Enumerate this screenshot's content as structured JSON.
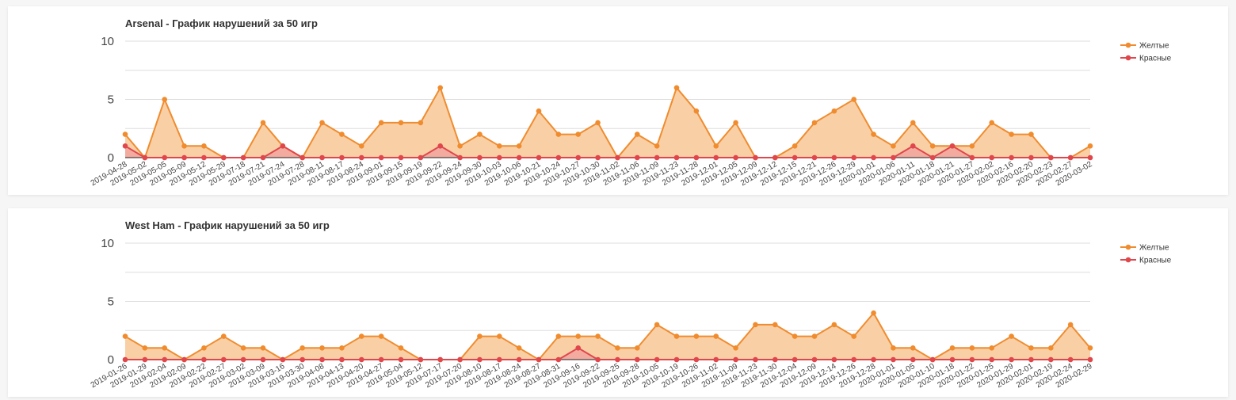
{
  "colors": {
    "yellow_line": "#f08c2e",
    "yellow_fill": "#f9cfa6",
    "red_line": "#e0474c",
    "red_fill": "#f2a6a0",
    "grid": "#dddddd",
    "baseline": "#222222"
  },
  "chart_data": [
    {
      "type": "area",
      "title": "Arsenal - График нарушений за 50 игр",
      "ylim": [
        0,
        10
      ],
      "yticks": [
        0,
        5,
        10
      ],
      "grid": true,
      "legend_position": "top-right",
      "categories": [
        "2019-04-28",
        "2019-05-02",
        "2019-05-05",
        "2019-05-09",
        "2019-05-12",
        "2019-05-29",
        "2019-07-18",
        "2019-07-21",
        "2019-07-24",
        "2019-07-28",
        "2019-08-11",
        "2019-08-17",
        "2019-08-24",
        "2019-09-01",
        "2019-09-15",
        "2019-09-19",
        "2019-09-22",
        "2019-09-24",
        "2019-09-30",
        "2019-10-03",
        "2019-10-06",
        "2019-10-21",
        "2019-10-24",
        "2019-10-27",
        "2019-10-30",
        "2019-11-02",
        "2019-11-06",
        "2019-11-09",
        "2019-11-23",
        "2019-11-28",
        "2019-12-01",
        "2019-12-05",
        "2019-12-09",
        "2019-12-12",
        "2019-12-15",
        "2019-12-21",
        "2019-12-26",
        "2019-12-29",
        "2020-01-01",
        "2020-01-06",
        "2020-01-11",
        "2020-01-18",
        "2020-01-21",
        "2020-01-27",
        "2020-02-02",
        "2020-02-16",
        "2020-02-20",
        "2020-02-23",
        "2020-02-27",
        "2020-03-02"
      ],
      "series": [
        {
          "name": "Желтые",
          "values": [
            2,
            0,
            5,
            1,
            1,
            0,
            0,
            3,
            1,
            0,
            3,
            2,
            1,
            3,
            3,
            3,
            6,
            1,
            2,
            1,
            1,
            4,
            2,
            2,
            3,
            0,
            2,
            1,
            6,
            4,
            1,
            3,
            0,
            0,
            1,
            3,
            4,
            5,
            2,
            1,
            3,
            1,
            1,
            1,
            3,
            2,
            2,
            0,
            0,
            1
          ]
        },
        {
          "name": "Красные",
          "values": [
            1,
            0,
            0,
            0,
            0,
            0,
            0,
            0,
            1,
            0,
            0,
            0,
            0,
            0,
            0,
            0,
            1,
            0,
            0,
            0,
            0,
            0,
            0,
            0,
            0,
            0,
            0,
            0,
            0,
            0,
            0,
            0,
            0,
            0,
            0,
            0,
            0,
            0,
            0,
            0,
            1,
            0,
            1,
            0,
            0,
            0,
            0,
            0,
            0,
            0
          ]
        }
      ]
    },
    {
      "type": "area",
      "title": "West Ham - График нарушений за 50 игр",
      "ylim": [
        0,
        10
      ],
      "yticks": [
        0,
        5,
        10
      ],
      "grid": true,
      "legend_position": "top-right",
      "categories": [
        "2019-01-26",
        "2019-01-29",
        "2019-02-04",
        "2019-02-09",
        "2019-02-22",
        "2019-02-27",
        "2019-03-02",
        "2019-03-09",
        "2019-03-16",
        "2019-03-30",
        "2019-04-08",
        "2019-04-13",
        "2019-04-20",
        "2019-04-27",
        "2019-05-04",
        "2019-05-12",
        "2019-07-17",
        "2019-07-20",
        "2019-08-10",
        "2019-08-17",
        "2019-08-24",
        "2019-08-27",
        "2019-08-31",
        "2019-09-16",
        "2019-09-22",
        "2019-09-25",
        "2019-09-28",
        "2019-10-05",
        "2019-10-19",
        "2019-10-26",
        "2019-11-02",
        "2019-11-09",
        "2019-11-23",
        "2019-11-30",
        "2019-12-04",
        "2019-12-09",
        "2019-12-14",
        "2019-12-26",
        "2019-12-28",
        "2020-01-01",
        "2020-01-05",
        "2020-01-10",
        "2020-01-18",
        "2020-01-22",
        "2020-01-25",
        "2020-01-29",
        "2020-02-01",
        "2020-02-19",
        "2020-02-24",
        "2020-02-29"
      ],
      "series": [
        {
          "name": "Желтые",
          "values": [
            2,
            1,
            1,
            0,
            1,
            2,
            1,
            1,
            0,
            1,
            1,
            1,
            2,
            2,
            1,
            0,
            0,
            0,
            2,
            2,
            1,
            0,
            2,
            2,
            2,
            1,
            1,
            3,
            2,
            2,
            2,
            1,
            3,
            3,
            2,
            2,
            3,
            2,
            4,
            1,
            1,
            0,
            1,
            1,
            1,
            2,
            1,
            1,
            3,
            1
          ]
        },
        {
          "name": "Красные",
          "values": [
            0,
            0,
            0,
            0,
            0,
            0,
            0,
            0,
            0,
            0,
            0,
            0,
            0,
            0,
            0,
            0,
            0,
            0,
            0,
            0,
            0,
            0,
            0,
            1,
            0,
            0,
            0,
            0,
            0,
            0,
            0,
            0,
            0,
            0,
            0,
            0,
            0,
            0,
            0,
            0,
            0,
            0,
            0,
            0,
            0,
            0,
            0,
            0,
            0,
            0
          ]
        }
      ]
    }
  ]
}
